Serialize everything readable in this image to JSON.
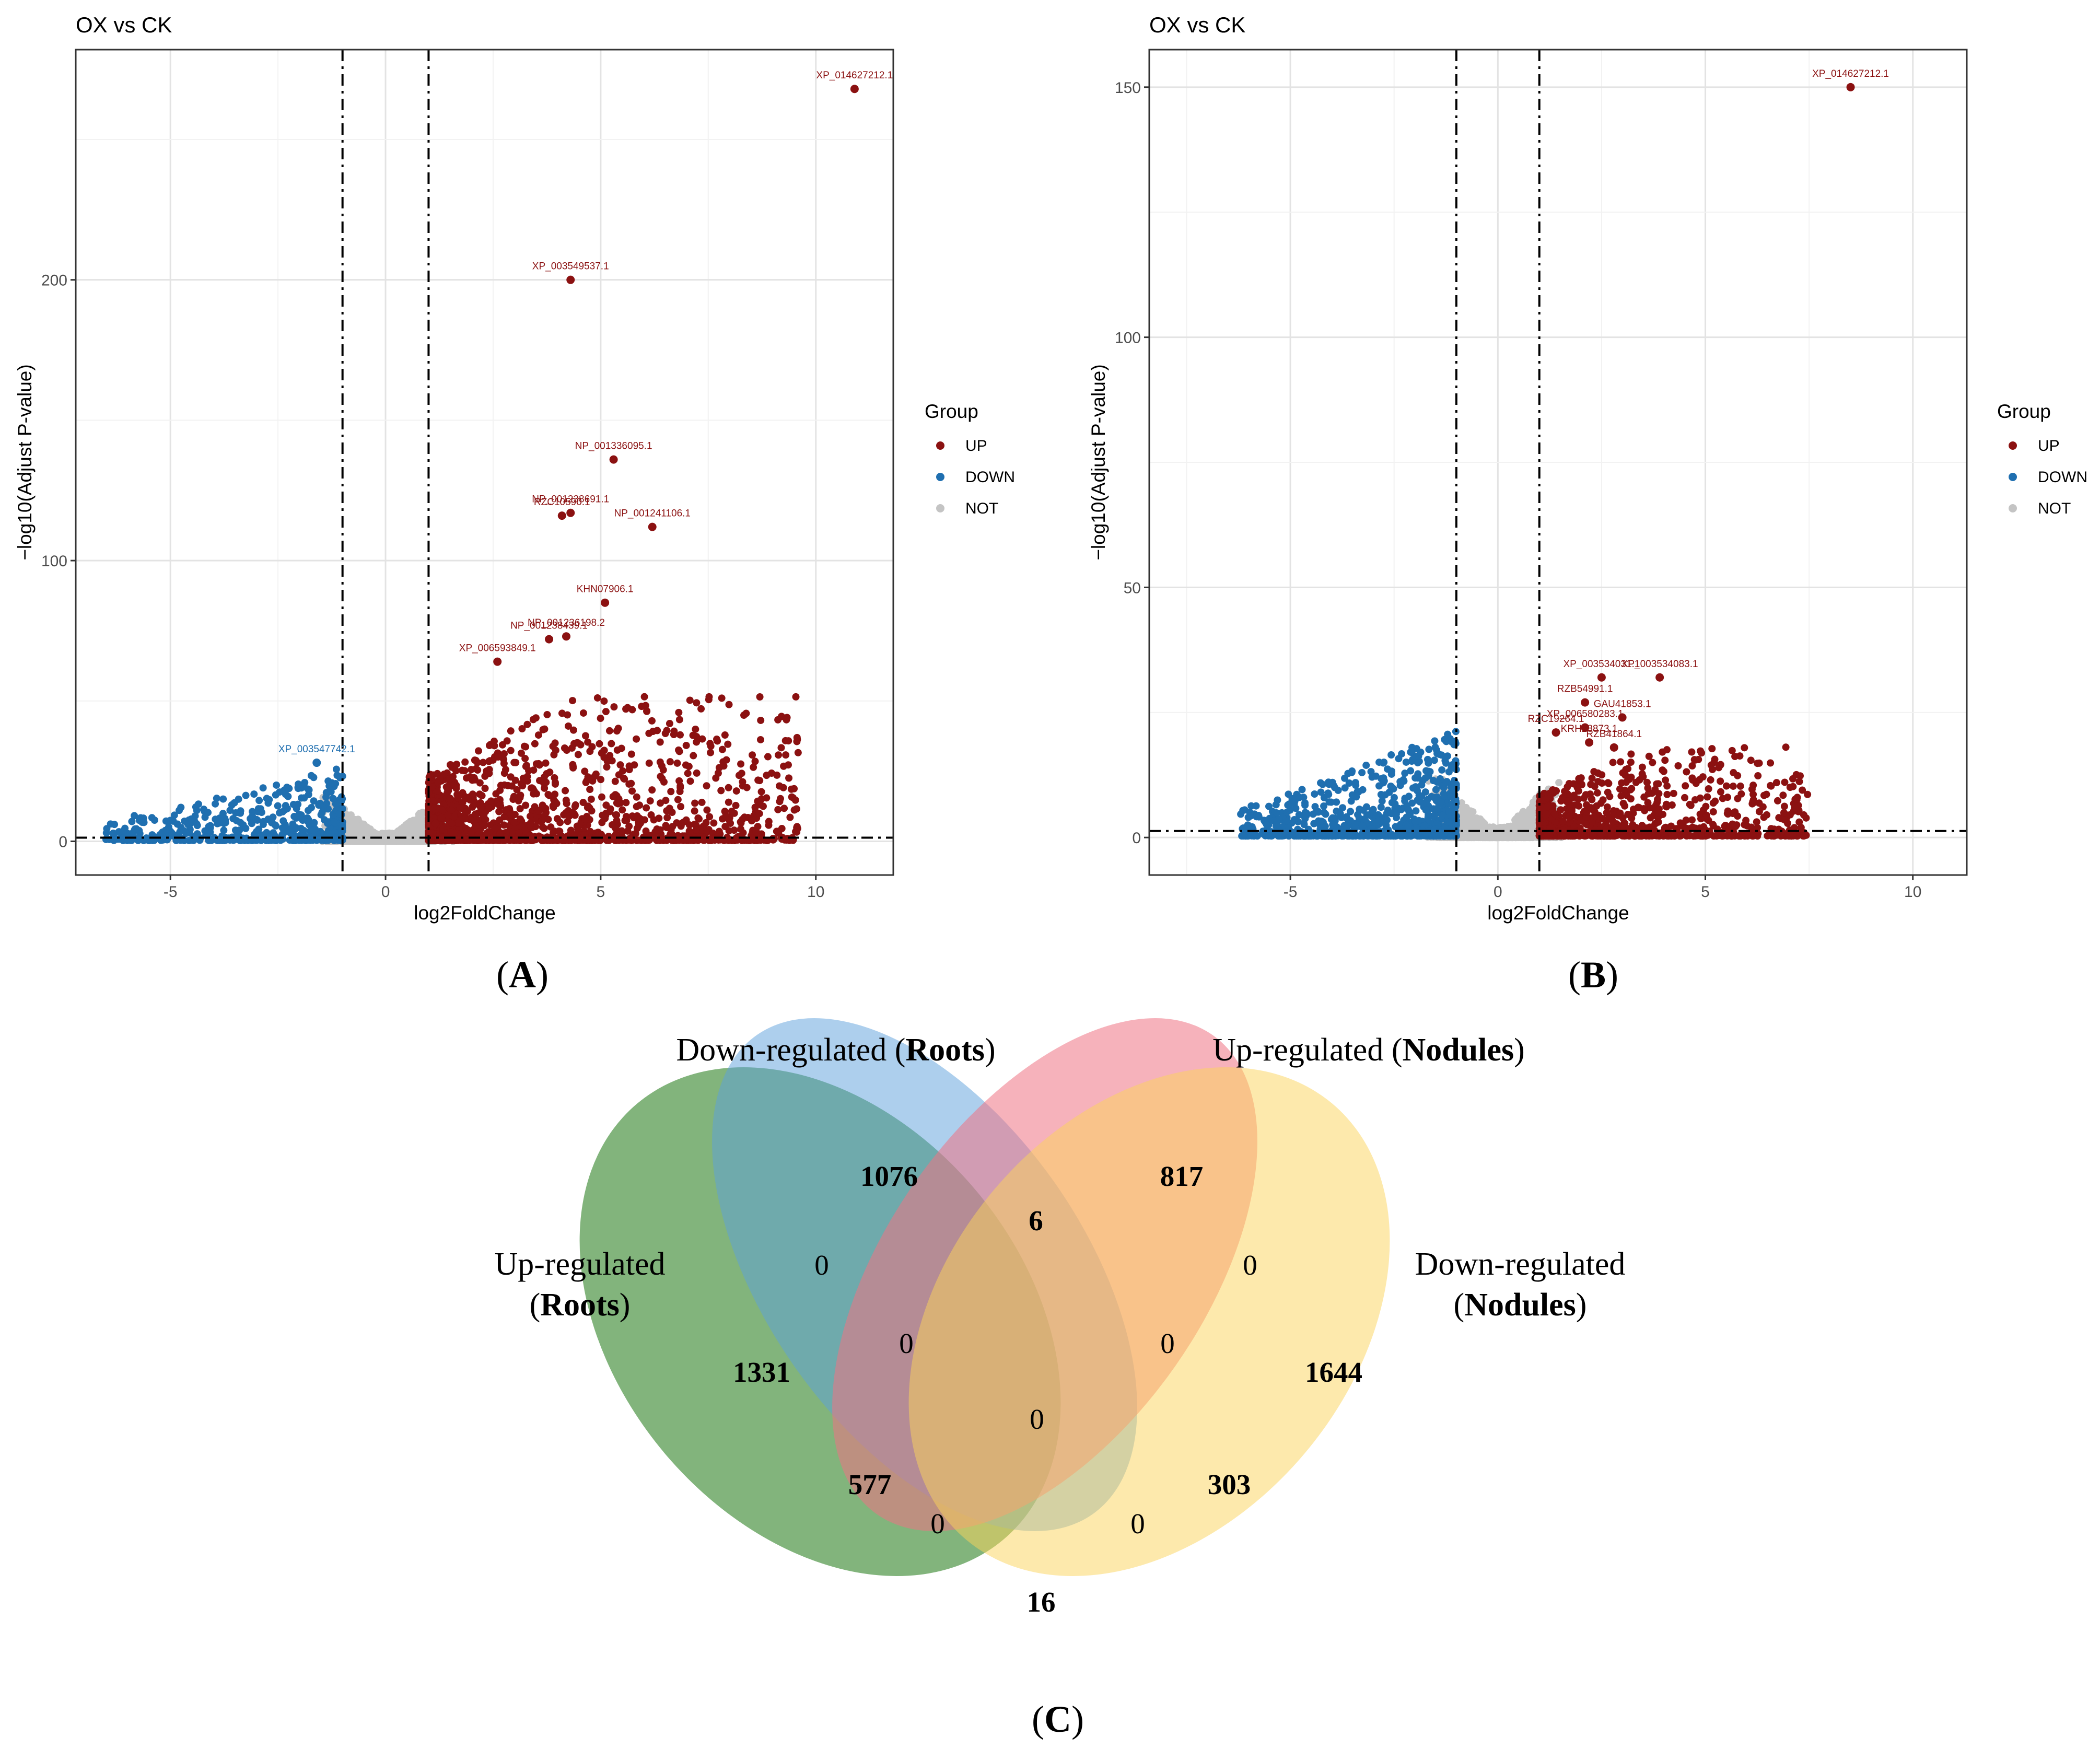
{
  "chart_data": [
    {
      "type": "scatter",
      "subtype": "volcano",
      "panel": "(A)",
      "title": "OX vs CK",
      "xlabel": "log2FoldChange",
      "ylabel": "−log10(Adjust P-value)",
      "xlim": [
        -7.2,
        11.8
      ],
      "ylim": [
        -12,
        282
      ],
      "xticks": [
        -5,
        0,
        5,
        10
      ],
      "yticks": [
        0,
        100,
        200
      ],
      "thresholds": {
        "x": [
          -1,
          1
        ],
        "y": 1.3
      },
      "legend": {
        "title": "Group",
        "entries": [
          "UP",
          "DOWN",
          "NOT"
        ],
        "colors": [
          "#8b1111",
          "#1f6fb0",
          "#c4c4c4"
        ],
        "position": "right"
      },
      "clouds": {
        "down": {
          "xrange": [
            -6.5,
            -1.0
          ],
          "ymax": 26,
          "count": 520
        },
        "up": {
          "xrange": [
            1.0,
            9.6
          ],
          "ymax": 52,
          "count": 1650
        },
        "not": {
          "xrange": [
            -1.6,
            1.6
          ],
          "ymax": 20,
          "count": 1100
        }
      },
      "highlights": [
        {
          "x": 10.9,
          "y": 268,
          "label": "XP_014627212.1",
          "group": "UP"
        },
        {
          "x": 4.3,
          "y": 200,
          "label": "XP_003549537.1",
          "group": "UP"
        },
        {
          "x": 5.3,
          "y": 136,
          "label": "NP_001336095.1",
          "group": "UP"
        },
        {
          "x": 4.3,
          "y": 117,
          "label": "NP_001238691.1",
          "group": "UP"
        },
        {
          "x": 4.1,
          "y": 116,
          "label": "RZC10590.1",
          "group": "UP"
        },
        {
          "x": 6.2,
          "y": 112,
          "label": "NP_001241106.1",
          "group": "UP"
        },
        {
          "x": 5.1,
          "y": 85,
          "label": "KHN07906.1",
          "group": "UP"
        },
        {
          "x": 3.8,
          "y": 72,
          "label": "NP_001238439.1",
          "group": "UP"
        },
        {
          "x": 4.2,
          "y": 73,
          "label": "NP_001236198.2",
          "group": "UP"
        },
        {
          "x": 2.6,
          "y": 64,
          "label": "XP_006593849.1",
          "group": "UP"
        },
        {
          "x": -1.6,
          "y": 28,
          "label": "XP_003547742.1",
          "group": "DOWN"
        }
      ]
    },
    {
      "type": "scatter",
      "subtype": "volcano",
      "panel": "(B)",
      "title": "OX vs CK",
      "xlabel": "log2FoldChange",
      "ylabel": "−log10(Adjust P-value)",
      "xlim": [
        -8.4,
        11.3
      ],
      "ylim": [
        -7.5,
        157.5
      ],
      "xticks": [
        -5,
        0,
        5,
        10
      ],
      "yticks": [
        0,
        50,
        100,
        150
      ],
      "thresholds": {
        "x": [
          -1,
          1
        ],
        "y": 1.3
      },
      "legend": {
        "title": "Group",
        "entries": [
          "UP",
          "DOWN",
          "NOT"
        ],
        "colors": [
          "#8b1111",
          "#1f6fb0",
          "#c4c4c4"
        ],
        "position": "right"
      },
      "clouds": {
        "down": {
          "xrange": [
            -6.2,
            -1.0
          ],
          "ymax": 21,
          "count": 850
        },
        "up": {
          "xrange": [
            1.0,
            7.5
          ],
          "ymax": 18,
          "count": 1050
        },
        "not": {
          "xrange": [
            -1.8,
            1.6
          ],
          "ymax": 14,
          "count": 1100
        }
      },
      "highlights": [
        {
          "x": 8.5,
          "y": 150,
          "label": "XP_014627212.1",
          "group": "UP"
        },
        {
          "x": 2.5,
          "y": 32,
          "label": "XP_003534031.1",
          "group": "UP"
        },
        {
          "x": 3.9,
          "y": 32,
          "label": "XP_003534083.1",
          "group": "UP"
        },
        {
          "x": 2.1,
          "y": 27,
          "label": "RZB54991.1",
          "group": "UP"
        },
        {
          "x": 3.0,
          "y": 24,
          "label": "GAU41853.1",
          "group": "UP"
        },
        {
          "x": 2.1,
          "y": 22,
          "label": "XP_006580283.1",
          "group": "UP"
        },
        {
          "x": 1.4,
          "y": 21,
          "label": "RZC19264.1",
          "group": "UP"
        },
        {
          "x": 2.2,
          "y": 19,
          "label": "KRH28873.1",
          "group": "UP"
        },
        {
          "x": 2.8,
          "y": 18,
          "label": "RZB41864.1",
          "group": "UP"
        }
      ]
    },
    {
      "type": "venn",
      "panel": "(C)",
      "sets": [
        {
          "name": "Up-regulated",
          "tissue": "Roots",
          "color": "#4d9444"
        },
        {
          "name": "Down-regulated",
          "tissue": "Roots",
          "color": "#5ba0dc"
        },
        {
          "name": "Up-regulated",
          "tissue": "Nodules",
          "color": "#ee7283"
        },
        {
          "name": "Down-regulated",
          "tissue": "Nodules",
          "color": "#fcd45a"
        }
      ],
      "regions": [
        {
          "sets": [
            "UpRoots"
          ],
          "value": "1331",
          "bold": true
        },
        {
          "sets": [
            "DownRoots"
          ],
          "value": "1076",
          "bold": true
        },
        {
          "sets": [
            "UpNodules"
          ],
          "value": "817",
          "bold": true
        },
        {
          "sets": [
            "DownNodules"
          ],
          "value": "1644",
          "bold": true
        },
        {
          "sets": [
            "DownRoots",
            "UpNodules"
          ],
          "value": "6",
          "bold": true
        },
        {
          "sets": [
            "UpRoots",
            "DownRoots"
          ],
          "value": "0",
          "bold": false
        },
        {
          "sets": [
            "UpNodules",
            "DownNodules"
          ],
          "value": "0",
          "bold": false
        },
        {
          "sets": [
            "UpRoots",
            "DownRoots",
            "UpNodules"
          ],
          "value": "0",
          "bold": false
        },
        {
          "sets": [
            "DownRoots",
            "UpNodules",
            "DownNodules"
          ],
          "value": "0",
          "bold": false
        },
        {
          "sets": [
            "UpRoots",
            "DownRoots",
            "UpNodules",
            "DownNodules"
          ],
          "value": "0",
          "bold": false
        },
        {
          "sets": [
            "UpRoots",
            "UpNodules"
          ],
          "value": "577",
          "bold": true
        },
        {
          "sets": [
            "DownRoots",
            "DownNodules"
          ],
          "value": "303",
          "bold": true
        },
        {
          "sets": [
            "UpRoots",
            "UpNodules",
            "DownNodules"
          ],
          "value": "0",
          "bold": false
        },
        {
          "sets": [
            "UpRoots",
            "DownRoots",
            "DownNodules"
          ],
          "value": "0",
          "bold": false
        },
        {
          "sets": [
            "UpRoots",
            "DownNodules"
          ],
          "value": "16",
          "bold": true
        }
      ]
    }
  ]
}
